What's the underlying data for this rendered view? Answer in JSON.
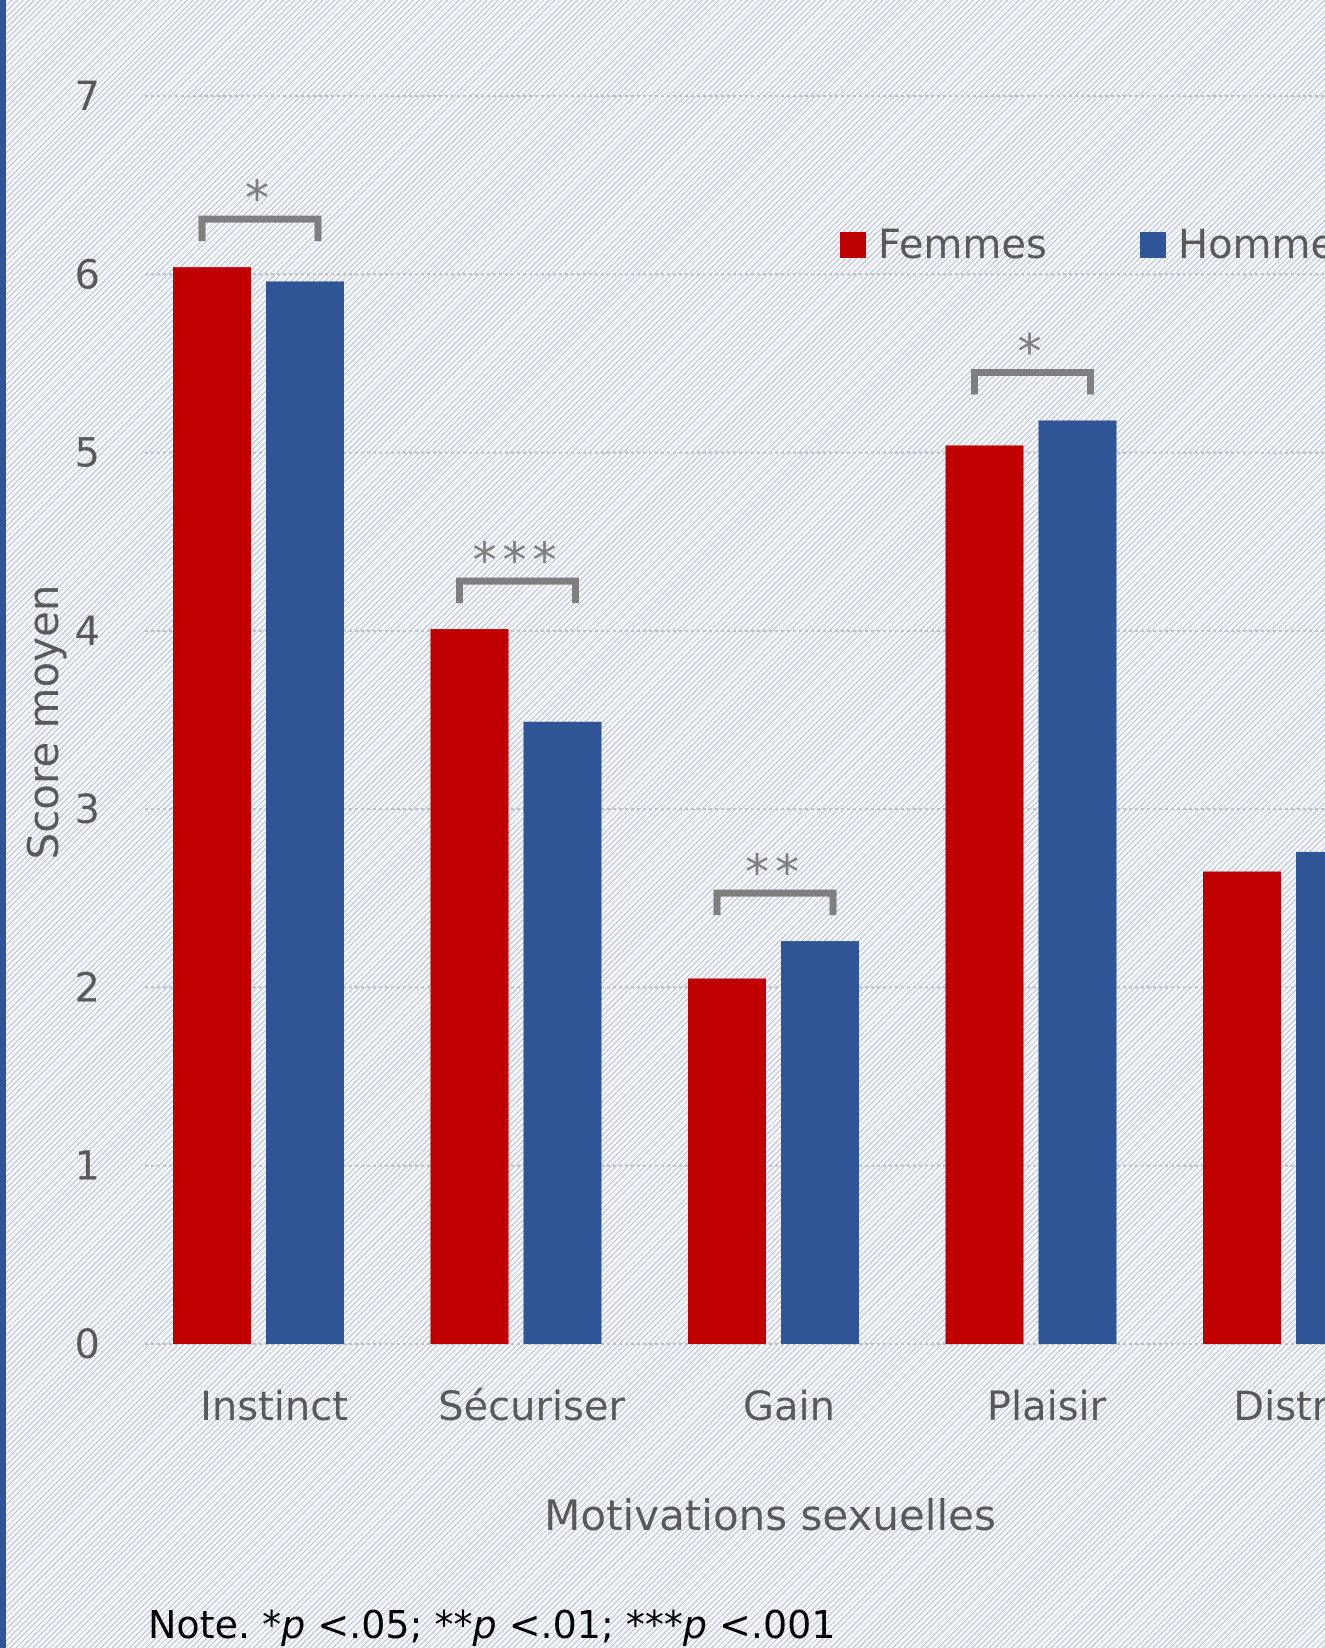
{
  "chart_data": {
    "type": "bar",
    "title": "",
    "xlabel": "Motivations sexuelles",
    "ylabel": "Score moyen",
    "ylim": [
      0,
      7
    ],
    "yticks": [
      0,
      1,
      2,
      3,
      4,
      5,
      6,
      7
    ],
    "grid": true,
    "legend_position": "top-right",
    "categories": [
      "Instinct",
      "Sécuriser",
      "Gain",
      "Plaisir",
      "Distrac"
    ],
    "series": [
      {
        "name": "Femmes",
        "color": "#c00000",
        "values": [
          6.04,
          4.01,
          2.05,
          5.04,
          2.65
        ]
      },
      {
        "name": "Hommes",
        "color": "#2f5597",
        "values": [
          5.96,
          3.49,
          2.26,
          5.18,
          2.76
        ]
      }
    ],
    "significance": [
      {
        "category": "Instinct",
        "label": "*"
      },
      {
        "category": "Sécuriser",
        "label": "***"
      },
      {
        "category": "Gain",
        "label": "**"
      },
      {
        "category": "Plaisir",
        "label": "*"
      }
    ]
  },
  "note": {
    "prefix": "Note. *",
    "p1": "p",
    "t1": " <.05; **",
    "p2": "p",
    "t2": " <.01; ***",
    "p3": "p",
    "t3": " <.001"
  }
}
